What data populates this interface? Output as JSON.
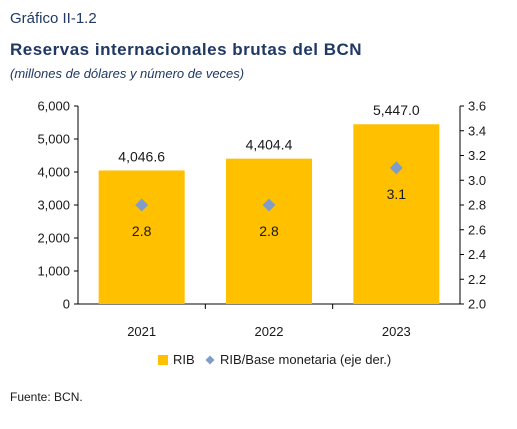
{
  "figure_label": "Gráfico II-1.2",
  "source": "Fuente: BCN.",
  "colors": {
    "bar": "#FFC000",
    "marker": "#7F9DC9",
    "title": "#1f3864"
  },
  "chart_data": {
    "type": "bar",
    "title": "Reservas internacionales brutas del BCN",
    "subtitle": "(millones de dólares y número de veces)",
    "categories": [
      "2021",
      "2022",
      "2023"
    ],
    "series": [
      {
        "name": "RIB",
        "type": "bar",
        "axis": "left",
        "values": [
          4046.6,
          4404.4,
          5447.0
        ],
        "labels": [
          "4,046.6",
          "4,404.4",
          "5,447.0"
        ]
      },
      {
        "name": "RIB/Base monetaria (eje der.)",
        "type": "scatter",
        "axis": "right",
        "values": [
          2.8,
          2.8,
          3.1
        ],
        "labels": [
          "2.8",
          "2.8",
          "3.1"
        ]
      }
    ],
    "ylim": [
      0,
      6000
    ],
    "yticks": [
      0,
      1000,
      2000,
      3000,
      4000,
      5000,
      6000
    ],
    "ytick_labels": [
      "0",
      "1,000",
      "2,000",
      "3,000",
      "4,000",
      "5,000",
      "6,000"
    ],
    "y2lim": [
      2.0,
      3.6
    ],
    "y2ticks": [
      2.0,
      2.2,
      2.4,
      2.6,
      2.8,
      3.0,
      3.2,
      3.4,
      3.6
    ],
    "y2tick_labels": [
      "2.0",
      "2.2",
      "2.4",
      "2.6",
      "2.8",
      "3.0",
      "3.2",
      "3.4",
      "3.6"
    ],
    "legend_position": "bottom",
    "grid": false
  }
}
